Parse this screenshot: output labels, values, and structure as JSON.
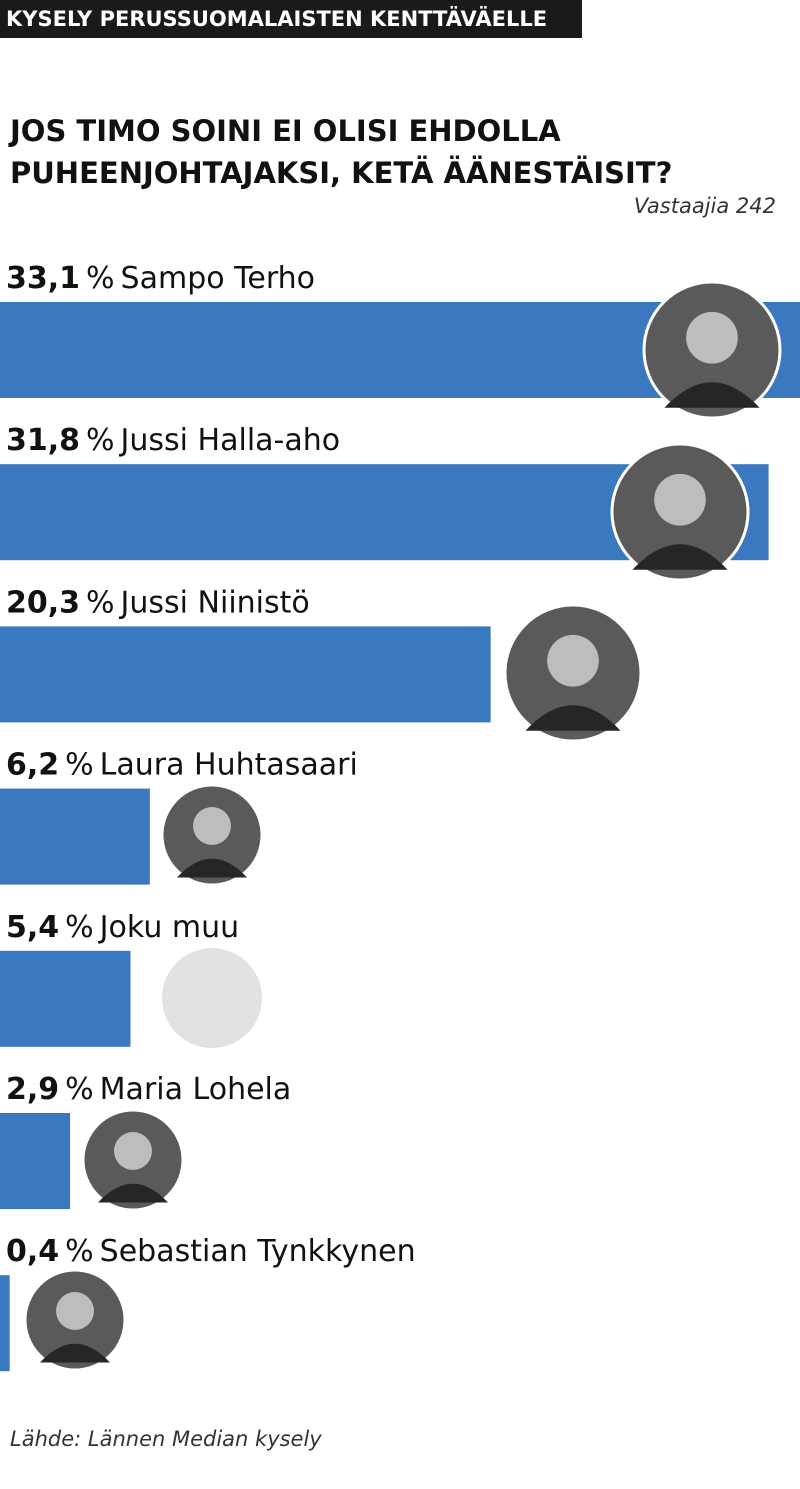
{
  "chart_data": {
    "type": "bar",
    "orientation": "horizontal",
    "kicker": "KYSELY PERUSSUOMALAISTEN KENTTÄVÄELLE",
    "title": "JOS TIMO SOINI EI OLISI EHDOLLA PUHEENJOHTAJAKSI, KETÄ ÄÄNESTÄISIT?",
    "subtitle": "Vastaajia 242",
    "source": "Lähde: Lännen Median kysely",
    "unit": "%",
    "categories": [
      "Sampo Terho",
      "Jussi Halla-aho",
      "Jussi Niinistö",
      "Laura Huhtasaari",
      "Joku muu",
      "Maria Lohela",
      "Sebastian Tynkkynen"
    ],
    "values": [
      33.1,
      31.8,
      20.3,
      6.2,
      5.4,
      2.9,
      0.4
    ],
    "value_labels": [
      "33,1",
      "31,8",
      "20,3",
      "6,2",
      "5,4",
      "2,9",
      "0,4"
    ],
    "color": "#3a78bf",
    "xlim": [
      0,
      33.1
    ]
  }
}
